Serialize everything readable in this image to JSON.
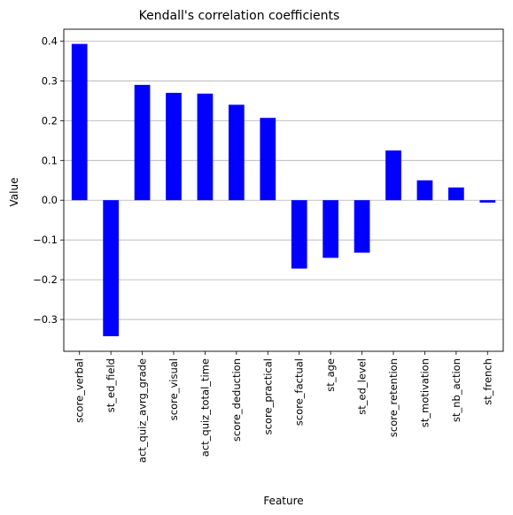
{
  "chart_data": {
    "type": "bar",
    "title": "Kendall's correlation coefficients",
    "xlabel": "Feature",
    "ylabel": "Value",
    "categories": [
      "score_verbal",
      "st_ed_field",
      "act_quiz_avrg_grade",
      "score_visual",
      "act_quiz_total_time",
      "score_deduction",
      "score_practical",
      "score_factual",
      "st_age",
      "st_ed_level",
      "score_retention",
      "st_motivation",
      "st_nb_action",
      "st_french"
    ],
    "values": [
      0.393,
      -0.342,
      0.29,
      0.27,
      0.268,
      0.24,
      0.207,
      -0.172,
      -0.145,
      -0.132,
      0.125,
      0.05,
      0.032,
      -0.006
    ],
    "ylim": [
      -0.38,
      0.43
    ],
    "yticks": [
      -0.3,
      -0.2,
      -0.1,
      0.0,
      0.1,
      0.2,
      0.3,
      0.4
    ],
    "ytick_labels": [
      "−0.3",
      "−0.2",
      "−0.1",
      "0.0",
      "0.1",
      "0.2",
      "0.3",
      "0.4"
    ],
    "bar_color": "#0000ff",
    "grid": "y",
    "grid_color": "#b0b0b0",
    "legend": "none"
  }
}
